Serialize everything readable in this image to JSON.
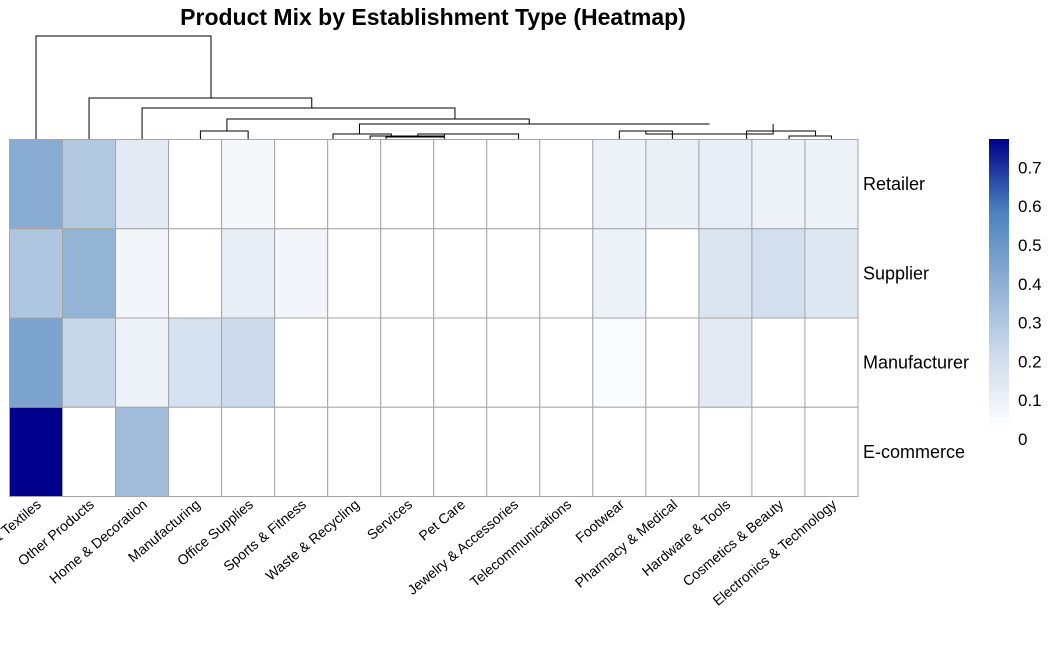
{
  "chart_data": {
    "type": "heatmap",
    "title": "Product Mix by Establishment Type (Heatmap)",
    "xlabel": "",
    "ylabel": "",
    "columns": [
      "Apparel & Textiles",
      "Other Products",
      "Home & Decoration",
      "Manufacturing",
      "Office Supplies",
      "Sports & Fitness",
      "Waste & Recycling",
      "Services",
      "Pet Care",
      "Jewelry & Accessories",
      "Telecommunications",
      "Footwear",
      "Pharmacy & Medical",
      "Hardware & Tools",
      "Cosmetics & Beauty",
      "Electronics & Technology"
    ],
    "rows": [
      "Retailer",
      "Supplier",
      "Manufacturer",
      "E-commerce"
    ],
    "values": [
      [
        0.39,
        0.27,
        0.11,
        0.0,
        0.04,
        0.0,
        0.0,
        0.0,
        0.0,
        0.0,
        0.0,
        0.07,
        0.08,
        0.09,
        0.07,
        0.07
      ],
      [
        0.28,
        0.36,
        0.05,
        0.0,
        0.09,
        0.05,
        0.0,
        0.0,
        0.0,
        0.0,
        0.0,
        0.07,
        0.0,
        0.14,
        0.17,
        0.13
      ],
      [
        0.43,
        0.21,
        0.07,
        0.16,
        0.19,
        0.0,
        0.0,
        0.0,
        0.0,
        0.0,
        0.0,
        0.02,
        0.0,
        0.11,
        0.0,
        0.0
      ],
      [
        0.75,
        0.0,
        0.32,
        0.0,
        0.0,
        0.0,
        0.0,
        0.0,
        0.0,
        0.0,
        0.0,
        0.0,
        0.0,
        0.0,
        0.0,
        0.0
      ]
    ],
    "color_scale": {
      "min": 0,
      "max": 0.75,
      "stops": [
        "#ffffff",
        "#cfdcec",
        "#8fb0d4",
        "#4a82be",
        "#00008b"
      ],
      "ticks": [
        0,
        0.1,
        0.2,
        0.3,
        0.4,
        0.5,
        0.6,
        0.7
      ],
      "tick_labels": [
        "0",
        "0.1",
        "0.2",
        "0.3",
        "0.4",
        "0.5",
        "0.6",
        "0.7"
      ]
    },
    "legend_placement": "right",
    "column_dendrogram": true,
    "grid_color": "#a6a6a6"
  }
}
